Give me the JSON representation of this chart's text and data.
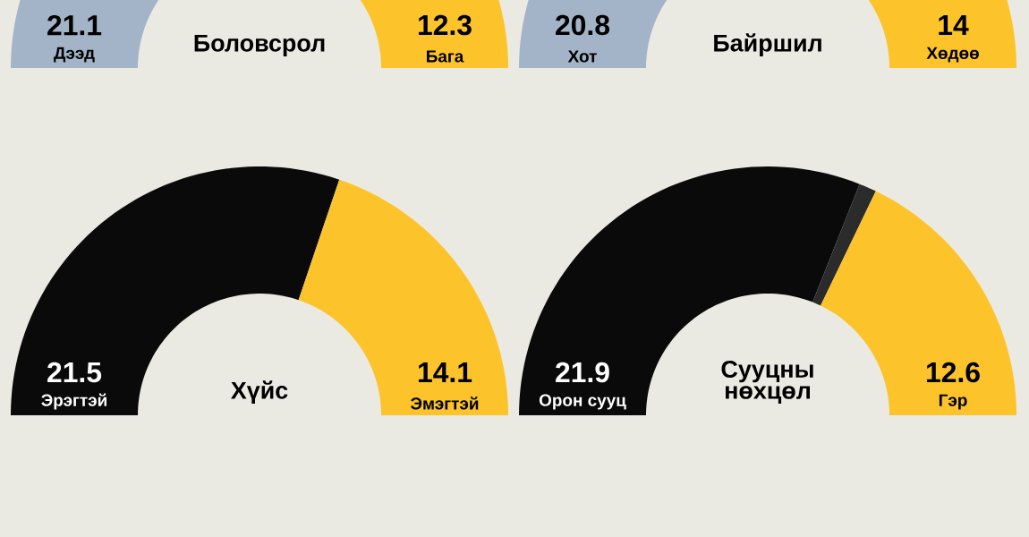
{
  "chart_data": [
    {
      "type": "donut",
      "title": "Боловсрол",
      "categories": [
        "Дээд",
        "Бага"
      ],
      "values": [
        21.1,
        12.3
      ],
      "colors": [
        "#a3b4c8",
        "#fcc42a"
      ],
      "data_labels": true
    },
    {
      "type": "donut",
      "title": "Байршил",
      "categories": [
        "Хот",
        "Хөдөө"
      ],
      "values": [
        20.8,
        14
      ],
      "colors": [
        "#a3b4c8",
        "#fcc42a"
      ],
      "data_labels": true
    },
    {
      "type": "donut",
      "title": "Хүйс",
      "categories": [
        "Эрэгтэй",
        "Эмэгтэй"
      ],
      "values": [
        21.5,
        14.1
      ],
      "colors": [
        "#0a0a0a",
        "#fcc42a"
      ],
      "data_labels": true
    },
    {
      "type": "donut",
      "title": "Сууцны нөхцөл",
      "categories": [
        "Орон сууц",
        null,
        "Гэр"
      ],
      "values": [
        21.9,
        0.8,
        12.6
      ],
      "colors": [
        "#0a0a0a",
        "#2b2b2b",
        "#fcc42a"
      ],
      "value_labels": [
        "21.9",
        null,
        "12.6"
      ]
    }
  ]
}
